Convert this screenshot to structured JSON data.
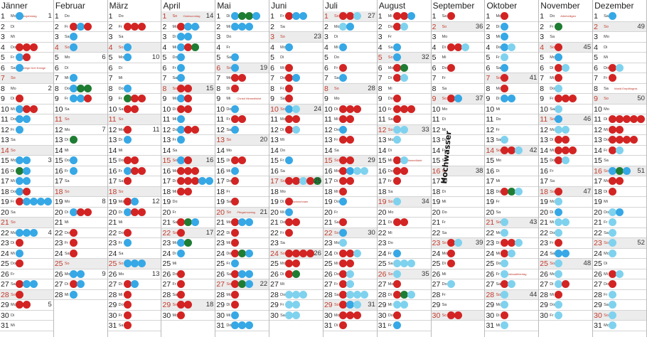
{
  "weekday_labels": [
    "Mo",
    "Di",
    "Mi",
    "Do",
    "Fr",
    "Sa",
    "So"
  ],
  "colors": {
    "red": "#d32424",
    "blue": "#36a8e6",
    "lightblue": "#7fd2ee",
    "green": "#1e7d32"
  },
  "handwritten_note": "Hochwasser",
  "months": [
    {
      "name": "Jänner",
      "days": 31,
      "first_weekday": 0,
      "dots": {
        "1": "b",
        "3": "",
        "4": "rrr",
        "5": "br",
        "6": "b",
        "8": "",
        "9": "r",
        "10": "brr",
        "11": "bb",
        "12": "b",
        "15": "bb",
        "16": "gb",
        "17": "bb",
        "18": "br",
        "19": "rbbbb",
        "21": "",
        "22": "bbb",
        "23": "r",
        "24": "b",
        "25": "r",
        "27": "rbb",
        "28": "r",
        "29": "rr"
      },
      "kw": {
        "1": "1",
        "8": "2",
        "15": "3",
        "22": "4",
        "29": "5"
      },
      "holidays": {
        "1": "Neujahrstag",
        "6": "Heilige Drei Könige"
      }
    },
    {
      "name": "Februar",
      "days": 28,
      "first_weekday": 3,
      "dots": {
        "2": "rbr",
        "3": "b",
        "4": "b",
        "7": "b",
        "8": "bgg",
        "9": "bbr",
        "10": "",
        "11": "",
        "13": "g",
        "14": "",
        "15": "b",
        "16": "b",
        "19": "",
        "20": "brr",
        "22": "r",
        "23": "r",
        "24": "r",
        "26": "bb",
        "27": "rb",
        "28": "b"
      },
      "kw": {
        "5": "6",
        "12": "7",
        "19": "8",
        "26": "9"
      },
      "holidays": {}
    },
    {
      "name": "März",
      "days": 31,
      "first_weekday": 3,
      "dots": {
        "2": "rrr",
        "4": "b",
        "5": "b",
        "6": "",
        "8": "b",
        "9": "grr",
        "10": "rr",
        "11": "",
        "12": "r",
        "13": "b",
        "15": "rr",
        "16": "brr",
        "17": "r",
        "19": "rb",
        "20": "brr",
        "22": "r",
        "23": "b",
        "25": "bbb",
        "26": "",
        "27": "rb",
        "28": "r",
        "29": "r",
        "30": "r",
        "31": "r"
      },
      "kw": {
        "5": "10",
        "12": "11",
        "19": "12",
        "26": "13"
      },
      "holidays": {}
    },
    {
      "name": "April",
      "days": 30,
      "first_weekday": 6,
      "dots": {
        "2": "rbb",
        "3": "bb",
        "4": "brg",
        "5": "b",
        "6": "b",
        "7": "b",
        "8": "rr",
        "9": "br",
        "10": "rr",
        "11": "b",
        "12": "brr",
        "13": "b",
        "14": "",
        "15": "br",
        "16": "rrr",
        "17": "rrrbb",
        "18": "rr",
        "21": "rgb",
        "22": "r",
        "23": "bg",
        "24": "b",
        "26": "r",
        "27": "r",
        "28": "r",
        "29": "rr",
        "30": "r"
      },
      "kw": {
        "1": "14",
        "8": "15",
        "15": "16",
        "22": "17",
        "29": "18"
      },
      "holidays": {
        "1": "Ostersonntag",
        "2": "Ostermontag"
      }
    },
    {
      "name": "Mai",
      "days": 31,
      "first_weekday": 1,
      "dots": {
        "1": "bggb",
        "2": "bbb",
        "5": "b",
        "6": "b",
        "7": "rr",
        "8": "r",
        "9": "",
        "10": "b",
        "11": "rr",
        "12": "b",
        "13": "",
        "15": "rr",
        "16": "b",
        "17": "r",
        "19": "r",
        "20": "",
        "21": "rbb",
        "22": "r",
        "23": "r",
        "24": "rgb",
        "25": "b",
        "26": "rbb",
        "27": "rgb",
        "28": "r",
        "29": "r",
        "30": "b",
        "31": "bbb"
      },
      "kw": {
        "6": "19",
        "13": "20",
        "20": "21",
        "27": "22"
      },
      "holidays": {
        "1": "Staatsfeiertag",
        "9": "Christi Himmelfahrt",
        "20": "Pfingstmontag"
      }
    },
    {
      "name": "Juni",
      "days": 30,
      "first_weekday": 4,
      "dots": {
        "1": "rbb",
        "2": "",
        "4": "b",
        "6": "r",
        "7": "rb",
        "8": "r",
        "9": "r",
        "10": "bl",
        "11": "rr",
        "12": "rl",
        "13": "",
        "15": "b",
        "16": "",
        "17": "rrlrg",
        "18": "",
        "19": "r",
        "20": "b",
        "21": "rr",
        "22": "r",
        "24": "rrrr",
        "25": "rr",
        "26": "rg",
        "27": "",
        "28": "lll",
        "29": "ll",
        "30": "ll"
      },
      "kw": {
        "3": "23",
        "10": "24",
        "17": "25",
        "24": "26"
      },
      "holidays": {
        "19": "Fronleichnam"
      }
    },
    {
      "name": "Juli",
      "days": 31,
      "first_weekday": 6,
      "dots": {
        "1": "rrl",
        "2": "lb",
        "4": "b",
        "5": "",
        "6": "r",
        "7": "b",
        "8": "",
        "10": "rrr",
        "11": "rr",
        "12": "b",
        "13": "rr",
        "15": "rr",
        "16": "rbll",
        "17": "rr",
        "18": "r",
        "19": "b",
        "21": "r",
        "22": "b",
        "23": "l",
        "24": "rrl",
        "25": "rr",
        "26": "rl",
        "27": "rl",
        "28": "rlll",
        "29": "rbl",
        "30": "rrr",
        "31": "r"
      },
      "kw": {
        "1": "27",
        "8": "28",
        "15": "29",
        "22": "30",
        "29": "31"
      },
      "holidays": {}
    },
    {
      "name": "August",
      "days": 31,
      "first_weekday": 2,
      "dots": {
        "1": "rrb",
        "2": "rl",
        "3": "",
        "4": "b",
        "5": "b",
        "6": "rg",
        "7": "rl",
        "8": "",
        "9": "r",
        "10": "rrr",
        "11": "r",
        "12": "ll",
        "13": "l",
        "15": "rl",
        "16": "rr",
        "17": "r",
        "18": "",
        "19": "l",
        "20": "",
        "21": "rr",
        "22": "",
        "23": "",
        "24": "b",
        "25": "lll",
        "26": "l",
        "27": "r",
        "28": "rgl",
        "29": "ll",
        "30": "r",
        "31": "b"
      },
      "kw": {
        "5": "32",
        "12": "33",
        "19": "34",
        "26": "35"
      },
      "holidays": {
        "15": "Mariä Himmelfahrt"
      }
    },
    {
      "name": "September",
      "days": 30,
      "first_weekday": 5,
      "dots": {
        "1": "r",
        "2": "",
        "3": "",
        "4": "rrl",
        "5": "",
        "6": "r",
        "7": "",
        "8": "",
        "9": "rb",
        "10": "",
        "11": "",
        "12": "",
        "14": "",
        "19": "",
        "23": "rl",
        "24": "r",
        "25": "r",
        "26": "",
        "27": "l",
        "30": "rr"
      },
      "kw": {
        "2": "36",
        "9": "37",
        "16": "38",
        "23": "39"
      },
      "holidays": {}
    },
    {
      "name": "Oktober",
      "days": 31,
      "first_weekday": 0,
      "dots": {
        "1": "r",
        "2": "b",
        "3": "b",
        "4": "bl",
        "5": "l",
        "6": "b",
        "7": "r",
        "8": "r",
        "9": "bb",
        "10": "",
        "11": "",
        "12": "",
        "13": "l",
        "14": "rrl",
        "15": "",
        "17": "",
        "18": "rgl",
        "19": "",
        "20": "",
        "21": "l",
        "22": "l",
        "23": "rrl",
        "24": "rl",
        "25": "l",
        "26": "l",
        "27": "rl",
        "28": "l",
        "29": "l",
        "30": "r",
        "31": "l"
      },
      "kw": {
        "7": "41",
        "14": "42",
        "21": "43",
        "28": "44"
      },
      "holidays": {
        "26": "Nationalfeiertag"
      }
    },
    {
      "name": "November",
      "days": 30,
      "first_weekday": 3,
      "dots": {
        "1": "",
        "2": "g",
        "3": "",
        "4": "r",
        "5": "b",
        "6": "rl",
        "7": "r",
        "8": "l",
        "9": "rrr",
        "10": "l",
        "11": "b",
        "12": "ll",
        "13": "rr",
        "14": "rrr",
        "15": "rl",
        "16": "",
        "17": "",
        "18": "r",
        "19": "l",
        "20": "b",
        "21": "ll",
        "22": "l",
        "23": "r",
        "24": "bb",
        "25": "l",
        "26": "l",
        "27": "lr",
        "28": "r",
        "29": "l",
        "30": "l"
      },
      "kw": {
        "4": "45",
        "11": "46",
        "18": "47",
        "25": "48"
      },
      "holidays": {
        "1": "Allerheiligen"
      }
    },
    {
      "name": "Dezember",
      "days": 31,
      "first_weekday": 5,
      "dots": {
        "1": "b",
        "6": "rl",
        "7": "r",
        "8": "",
        "10": "",
        "11": "rrrrr",
        "12": "rr",
        "13": "rrrr",
        "14": "rl",
        "16": "bgb",
        "17": "rr",
        "18": "r",
        "19": "",
        "20": "lb",
        "21": "l",
        "22": "l",
        "23": "l",
        "24": "l",
        "25": "",
        "26": "rl",
        "27": "r",
        "28": "l",
        "29": "l",
        "30": "l",
        "31": "l"
      },
      "kw": {
        "2": "49",
        "9": "50",
        "16": "51",
        "23": "52"
      },
      "holidays": {
        "8": "Mariä Empfängnis"
      }
    }
  ]
}
